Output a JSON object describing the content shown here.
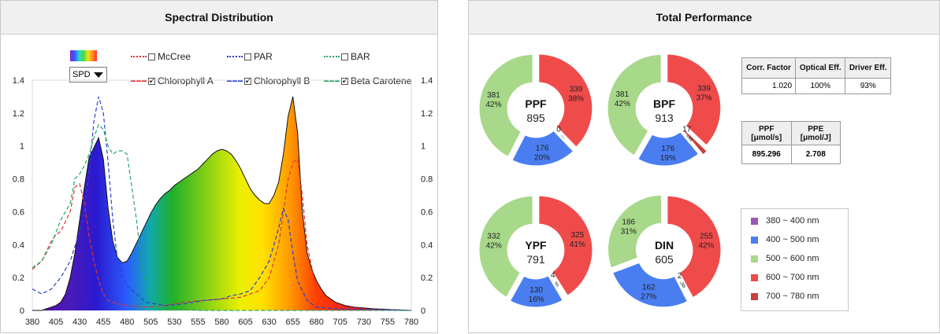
{
  "spectral_panel": {
    "title": "Spectral Distribution",
    "spd_label": "SPD",
    "legend": [
      {
        "label": "McCree",
        "checked": false,
        "color": "#e53030",
        "style": "dotted"
      },
      {
        "label": "PAR",
        "checked": false,
        "color": "#2a3fd6",
        "style": "dotted"
      },
      {
        "label": "BAR",
        "checked": false,
        "color": "#22a866",
        "style": "dotted"
      },
      {
        "label": "Chlorophyll A",
        "checked": true,
        "color": "#e53030",
        "style": "dashed"
      },
      {
        "label": "Chlorophyll B",
        "checked": true,
        "color": "#2a3fd6",
        "style": "dashed"
      },
      {
        "label": "Beta Carotene",
        "checked": true,
        "color": "#22a866",
        "style": "dashed"
      }
    ]
  },
  "performance_panel": {
    "title": "Total Performance",
    "band_legend": [
      {
        "label": "380 ~ 400 nm",
        "color": "#9b59b6"
      },
      {
        "label": "400 ~ 500 nm",
        "color": "#4a7ef0"
      },
      {
        "label": "500 ~ 600 nm",
        "color": "#a8d88a"
      },
      {
        "label": "600 ~ 700 nm",
        "color": "#f04b4b"
      },
      {
        "label": "700 ~ 780 nm",
        "color": "#c94040"
      }
    ],
    "factors": {
      "headers": [
        "Corr. Factor",
        "Optical Eff.",
        "Driver Eff."
      ],
      "values": [
        "1.020",
        "100%",
        "93%"
      ]
    },
    "ppf_ppe": {
      "headers": [
        [
          "PPF",
          "[μmol/s]"
        ],
        [
          "PPE",
          "[μmol/J]"
        ]
      ],
      "values": [
        "895.296",
        "2.708"
      ]
    }
  },
  "chart_data": [
    {
      "type": "area",
      "title": "Spectral Distribution",
      "xlim": [
        380,
        780
      ],
      "ylim": [
        0,
        1.4
      ],
      "x_ticks": [
        380,
        405,
        430,
        455,
        480,
        505,
        530,
        555,
        580,
        605,
        630,
        655,
        680,
        705,
        730,
        755,
        780
      ],
      "y_ticks": [
        "0",
        "0.2",
        "0.4",
        "0.6",
        "0.8",
        "1",
        "1.2",
        "1.4"
      ],
      "spd": {
        "x": [
          380,
          385,
          390,
          395,
          400,
          405,
          410,
          415,
          420,
          425,
          430,
          435,
          440,
          445,
          450,
          455,
          460,
          465,
          470,
          475,
          480,
          485,
          490,
          495,
          500,
          505,
          510,
          515,
          520,
          525,
          530,
          535,
          540,
          545,
          550,
          555,
          560,
          565,
          570,
          575,
          580,
          585,
          590,
          595,
          600,
          605,
          610,
          615,
          620,
          625,
          630,
          635,
          640,
          645,
          650,
          655,
          660,
          665,
          670,
          675,
          680,
          685,
          690,
          695,
          700,
          710,
          720,
          730,
          740,
          750,
          760,
          770,
          780
        ],
        "y": [
          0,
          0,
          0,
          0.01,
          0.02,
          0.03,
          0.05,
          0.1,
          0.2,
          0.35,
          0.55,
          0.75,
          0.93,
          0.99,
          1.05,
          0.92,
          0.62,
          0.42,
          0.32,
          0.29,
          0.3,
          0.35,
          0.41,
          0.47,
          0.53,
          0.59,
          0.64,
          0.68,
          0.71,
          0.73,
          0.76,
          0.78,
          0.8,
          0.82,
          0.84,
          0.86,
          0.89,
          0.92,
          0.95,
          0.97,
          0.98,
          0.97,
          0.95,
          0.91,
          0.86,
          0.8,
          0.74,
          0.7,
          0.67,
          0.65,
          0.65,
          0.7,
          0.78,
          0.95,
          1.18,
          1.3,
          1.08,
          0.6,
          0.35,
          0.25,
          0.18,
          0.13,
          0.09,
          0.07,
          0.05,
          0.03,
          0.02,
          0.015,
          0.01,
          0.008,
          0.005,
          0.003,
          0
        ]
      },
      "series": [
        {
          "name": "Chlorophyll A",
          "x": [
            380,
            390,
            400,
            405,
            410,
            420,
            425,
            430,
            435,
            440,
            445,
            450,
            455,
            460,
            470,
            480,
            500,
            520,
            540,
            560,
            580,
            600,
            620,
            630,
            640,
            645,
            650,
            655,
            660,
            665,
            670,
            680,
            690,
            700,
            720,
            750,
            780
          ],
          "y": [
            0.25,
            0.3,
            0.42,
            0.46,
            0.48,
            0.6,
            0.75,
            0.77,
            0.65,
            0.45,
            0.3,
            0.18,
            0.1,
            0.06,
            0.04,
            0.03,
            0.02,
            0.03,
            0.05,
            0.06,
            0.07,
            0.08,
            0.12,
            0.2,
            0.4,
            0.6,
            0.8,
            0.9,
            0.92,
            0.7,
            0.4,
            0.12,
            0.04,
            0.02,
            0.01,
            0.005,
            0
          ]
        },
        {
          "name": "Chlorophyll B",
          "x": [
            380,
            390,
            400,
            410,
            420,
            430,
            435,
            440,
            445,
            450,
            455,
            460,
            465,
            470,
            475,
            480,
            490,
            500,
            520,
            540,
            560,
            580,
            590,
            600,
            610,
            620,
            630,
            640,
            645,
            650,
            655,
            660,
            670,
            680,
            700,
            750,
            780
          ],
          "y": [
            0.13,
            0.1,
            0.13,
            0.2,
            0.3,
            0.48,
            0.6,
            0.85,
            1.15,
            1.3,
            1.2,
            0.9,
            0.55,
            0.3,
            0.2,
            0.15,
            0.1,
            0.05,
            0.03,
            0.04,
            0.06,
            0.07,
            0.09,
            0.1,
            0.12,
            0.2,
            0.3,
            0.5,
            0.62,
            0.55,
            0.35,
            0.18,
            0.06,
            0.02,
            0.01,
            0.005,
            0
          ]
        },
        {
          "name": "Beta Carotene",
          "x": [
            380,
            390,
            400,
            410,
            420,
            425,
            430,
            435,
            440,
            445,
            450,
            455,
            460,
            465,
            470,
            475,
            480,
            485,
            490,
            495,
            500,
            505,
            510,
            520,
            540,
            560,
            580,
            600,
            650,
            700,
            780
          ],
          "y": [
            0.26,
            0.3,
            0.4,
            0.55,
            0.65,
            0.8,
            0.83,
            0.88,
            0.95,
            1.05,
            1.13,
            1.1,
            1.0,
            0.95,
            0.97,
            0.97,
            0.95,
            0.75,
            0.55,
            0.3,
            0.15,
            0.07,
            0.03,
            0.01,
            0.005,
            0,
            0,
            0,
            0,
            0,
            0
          ]
        }
      ]
    },
    {
      "type": "pie",
      "title": "PPF",
      "total": "895",
      "slices": [
        {
          "label": "400 ~ 500 nm",
          "value": 176,
          "percent": "20%"
        },
        {
          "label": "500 ~ 600 nm",
          "value": 381,
          "percent": "42%"
        },
        {
          "label": "600 ~ 700 nm",
          "value": 339,
          "percent": "38%"
        },
        {
          "label": "700 ~ 780 nm",
          "value": 0,
          "percent": "0%"
        }
      ]
    },
    {
      "type": "pie",
      "title": "BPF",
      "total": "913",
      "slices": [
        {
          "label": "400 ~ 500 nm",
          "value": 176,
          "percent": "19%"
        },
        {
          "label": "500 ~ 600 nm",
          "value": 381,
          "percent": "42%"
        },
        {
          "label": "600 ~ 700 nm",
          "value": 339,
          "percent": "37%"
        },
        {
          "label": "700 ~ 780 nm",
          "value": 17,
          "percent": "2%"
        }
      ]
    },
    {
      "type": "pie",
      "title": "YPF",
      "total": "791",
      "slices": [
        {
          "label": "400 ~ 500 nm",
          "value": 130,
          "percent": "16%"
        },
        {
          "label": "500 ~ 600 nm",
          "value": 332,
          "percent": "42%"
        },
        {
          "label": "600 ~ 700 nm",
          "value": 325,
          "percent": "41%"
        },
        {
          "label": "700 ~ 780 nm",
          "value": 4,
          "percent": "1%"
        }
      ]
    },
    {
      "type": "pie",
      "title": "DIN",
      "total": "605",
      "slices": [
        {
          "label": "400 ~ 500 nm",
          "value": 162,
          "percent": "27%"
        },
        {
          "label": "500 ~ 600 nm",
          "value": 186,
          "percent": "31%"
        },
        {
          "label": "600 ~ 700 nm",
          "value": 255,
          "percent": "42%"
        },
        {
          "label": "700 ~ 780 nm",
          "value": 2,
          "percent": "0%"
        }
      ]
    }
  ]
}
